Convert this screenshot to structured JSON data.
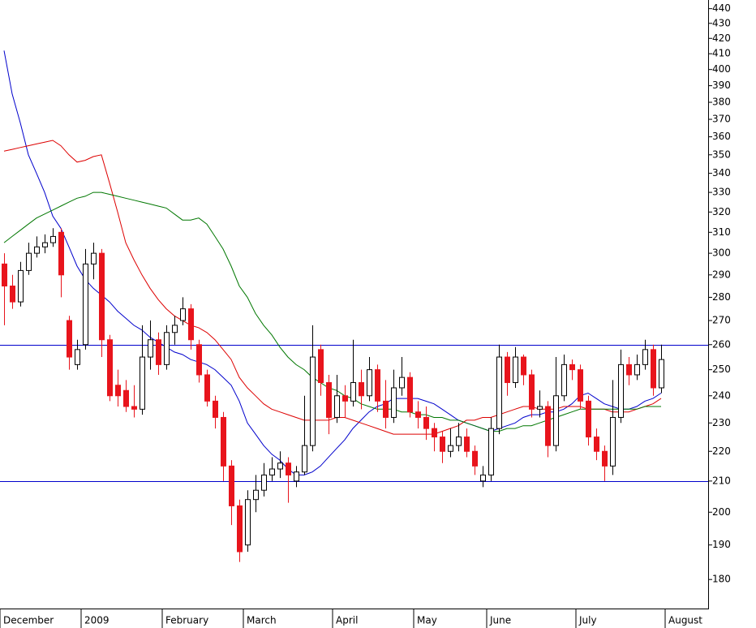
{
  "chart_data": {
    "type": "candlestick",
    "categories": [
      "December",
      null,
      null,
      null,
      null,
      null,
      null,
      null,
      null,
      null,
      "2009",
      null,
      null,
      null,
      null,
      null,
      null,
      null,
      null,
      null,
      "February",
      null,
      null,
      null,
      null,
      null,
      null,
      null,
      null,
      null,
      "March",
      null,
      null,
      null,
      null,
      null,
      null,
      null,
      null,
      null,
      null,
      "April",
      null,
      null,
      null,
      null,
      null,
      null,
      null,
      null,
      null,
      "May",
      null,
      null,
      null,
      null,
      null,
      null,
      null,
      null,
      "June",
      null,
      null,
      null,
      null,
      null,
      null,
      null,
      null,
      null,
      null,
      "July",
      null,
      null,
      null,
      null,
      null,
      null,
      null,
      null,
      null,
      null,
      "August"
    ],
    "open": [
      295,
      285,
      278,
      292,
      300,
      303,
      305,
      310,
      270,
      252,
      260,
      295,
      300,
      262,
      244,
      242,
      236,
      235,
      255,
      262,
      252,
      265,
      270,
      275,
      260,
      248,
      238,
      232,
      215,
      202,
      190,
      204,
      207,
      212,
      214,
      216,
      210,
      213,
      222,
      258,
      245,
      232,
      240,
      238,
      245,
      240,
      250,
      238,
      232,
      243,
      247,
      234,
      232,
      228,
      225,
      220,
      222,
      225,
      220,
      210,
      212,
      228,
      255,
      245,
      255,
      248,
      235,
      236,
      222,
      240,
      252,
      250,
      238,
      225,
      220,
      215,
      232,
      252,
      248,
      252,
      258,
      243,
      null
    ],
    "high": [
      300,
      290,
      296,
      305,
      308,
      309,
      312,
      312,
      272,
      262,
      302,
      305,
      302,
      264,
      250,
      246,
      244,
      268,
      270,
      265,
      268,
      272,
      280,
      277,
      262,
      250,
      240,
      234,
      217,
      204,
      207,
      212,
      216,
      218,
      220,
      218,
      215,
      240,
      268,
      260,
      248,
      248,
      244,
      262,
      250,
      255,
      252,
      246,
      250,
      255,
      249,
      238,
      236,
      230,
      227,
      228,
      230,
      228,
      222,
      215,
      232,
      260,
      257,
      259,
      256,
      250,
      242,
      238,
      255,
      256,
      254,
      252,
      240,
      228,
      222,
      246,
      258,
      255,
      256,
      262,
      260,
      260,
      null
    ],
    "low": [
      268,
      275,
      276,
      290,
      298,
      300,
      303,
      280,
      250,
      250,
      258,
      288,
      255,
      238,
      236,
      234,
      232,
      233,
      250,
      248,
      250,
      260,
      268,
      258,
      245,
      236,
      228,
      210,
      196,
      185,
      188,
      200,
      205,
      210,
      211,
      203,
      208,
      212,
      220,
      240,
      226,
      230,
      232,
      236,
      235,
      238,
      234,
      228,
      230,
      240,
      232,
      228,
      224,
      220,
      216,
      218,
      220,
      218,
      212,
      208,
      210,
      226,
      240,
      243,
      244,
      232,
      232,
      218,
      220,
      238,
      246,
      235,
      222,
      217,
      210,
      212,
      230,
      244,
      246,
      250,
      240,
      241,
      null
    ],
    "close": [
      285,
      278,
      292,
      300,
      303,
      305,
      308,
      290,
      255,
      258,
      295,
      300,
      262,
      240,
      240,
      236,
      235,
      255,
      262,
      252,
      265,
      268,
      275,
      262,
      248,
      238,
      232,
      215,
      202,
      188,
      204,
      207,
      212,
      214,
      216,
      212,
      213,
      222,
      255,
      245,
      232,
      240,
      238,
      245,
      240,
      250,
      238,
      232,
      243,
      247,
      234,
      232,
      228,
      225,
      220,
      222,
      225,
      220,
      215,
      212,
      228,
      255,
      245,
      255,
      248,
      235,
      236,
      222,
      240,
      252,
      250,
      238,
      225,
      220,
      215,
      232,
      252,
      248,
      252,
      258,
      243,
      254,
      null
    ],
    "up_color": "#ffffff",
    "down_color": "#e8141c",
    "outline_color": "#000000",
    "lines": [
      {
        "color": "#0000cc",
        "values": [
          412,
          385,
          368,
          350,
          340,
          330,
          318,
          312,
          303,
          294,
          288,
          284,
          281,
          278,
          274,
          271,
          268,
          266,
          263,
          261,
          259,
          257,
          256,
          254,
          253,
          252,
          250,
          247,
          244,
          238,
          230,
          226,
          222,
          219,
          217,
          214,
          212,
          212,
          213,
          215,
          218,
          221,
          224,
          228,
          231,
          234,
          236,
          237,
          239,
          239,
          239,
          239,
          238,
          237,
          235,
          233,
          231,
          230,
          229,
          228,
          227,
          228,
          229,
          230,
          232,
          233,
          233,
          234,
          234,
          235,
          237,
          240,
          241,
          239,
          237,
          236,
          235,
          235,
          236,
          238,
          239,
          241,
          null
        ]
      },
      {
        "color": "#dd0000",
        "values": [
          352,
          353,
          354,
          355,
          356,
          357,
          358,
          355,
          350,
          346,
          347,
          349,
          350,
          335,
          320,
          305,
          297,
          290,
          284,
          279,
          275,
          272,
          270,
          268,
          267,
          265,
          262,
          258,
          254,
          247,
          243,
          240,
          237,
          235,
          234,
          233,
          232,
          231,
          231,
          231,
          231,
          232,
          232,
          231,
          230,
          229,
          228,
          227,
          226,
          226,
          226,
          226,
          226,
          226,
          227,
          228,
          229,
          231,
          231,
          232,
          232,
          233,
          234,
          235,
          236,
          236,
          235,
          235,
          235,
          236,
          236,
          236,
          235,
          235,
          235,
          234,
          234,
          234,
          235,
          236,
          237,
          239,
          null
        ]
      },
      {
        "color": "#007700",
        "values": [
          305,
          308,
          311,
          314,
          317,
          319,
          321,
          323,
          325,
          327,
          328,
          330,
          330,
          329,
          328,
          327,
          326,
          325,
          324,
          323,
          322,
          319,
          316,
          316,
          317,
          314,
          308,
          302,
          294,
          285,
          280,
          273,
          268,
          264,
          259,
          255,
          252,
          250,
          247,
          245,
          243,
          242,
          240,
          239,
          237,
          236,
          235,
          235,
          235,
          234,
          234,
          233,
          233,
          232,
          232,
          231,
          231,
          230,
          229,
          228,
          227,
          227,
          228,
          228,
          229,
          229,
          230,
          231,
          232,
          233,
          234,
          235,
          235,
          235,
          235,
          235,
          235,
          235,
          235,
          236,
          236,
          236,
          null
        ]
      }
    ],
    "hlines": [
      260,
      210
    ],
    "hline_color": "#0000cc",
    "ylim": [
      172,
      446
    ],
    "log_scale": true,
    "yticks": [
      180,
      190,
      200,
      210,
      220,
      230,
      240,
      250,
      260,
      270,
      280,
      290,
      300,
      310,
      320,
      330,
      340,
      350,
      360,
      370,
      380,
      390,
      400,
      410,
      420,
      430,
      440
    ]
  }
}
